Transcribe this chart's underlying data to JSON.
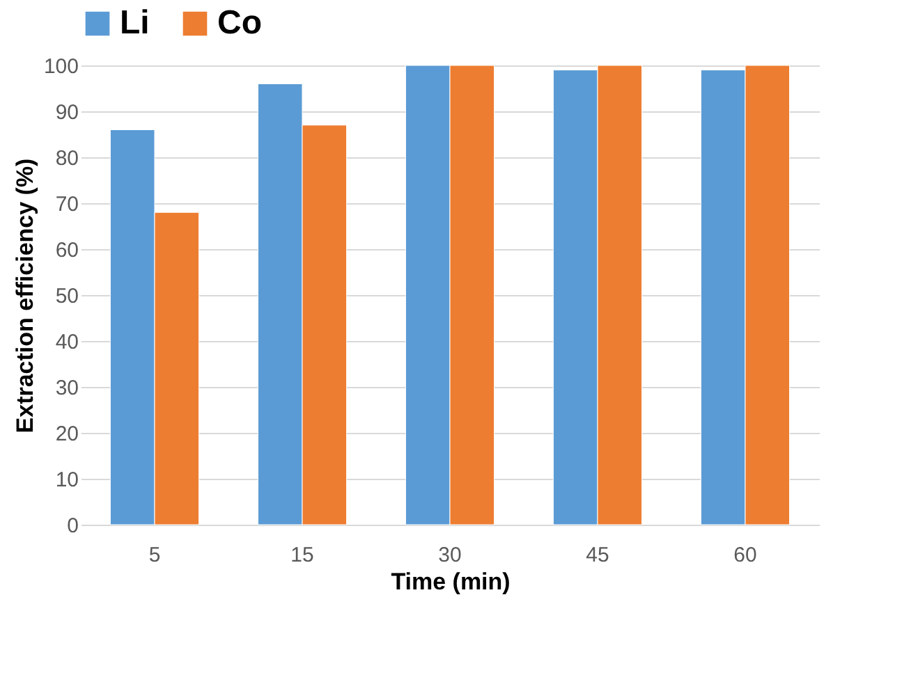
{
  "chart_data": {
    "type": "bar",
    "xlabel": "Time (min)",
    "ylabel": "Extraction efficiency (%)",
    "categories": [
      "5",
      "15",
      "30",
      "45",
      "60"
    ],
    "series": [
      {
        "name": "Li",
        "color": "#5b9bd5",
        "values": [
          86,
          96,
          100,
          99,
          99
        ]
      },
      {
        "name": "Co",
        "color": "#ed7d31",
        "values": [
          68,
          87,
          100,
          100,
          100
        ]
      }
    ],
    "ylim": [
      0,
      100
    ],
    "yticks": [
      0,
      10,
      20,
      30,
      40,
      50,
      60,
      70,
      80,
      90,
      100
    ],
    "grid": "y",
    "legend": "top"
  }
}
